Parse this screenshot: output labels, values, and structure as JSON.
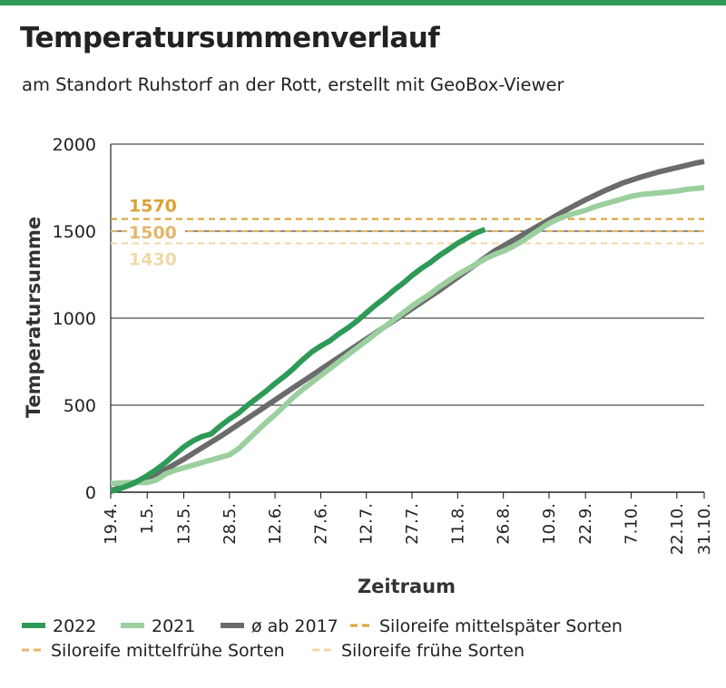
{
  "title": "Temperatursummenverlauf",
  "subtitle": "am Standort Ruhstorf an der Rott, erstellt mit GeoBox-Viewer",
  "colors": {
    "accent_bar": "#2f9a58",
    "series_2022": "#2f9a58",
    "series_2021": "#9ccf9f",
    "series_avg": "#6b6b6b",
    "ref_1570": "#d9a235",
    "ref_1500": "#e4b66a",
    "ref_1430": "#f0d9a8"
  },
  "chart_data": {
    "type": "line",
    "xlabel": "Zeitraum",
    "ylabel": "Temperatursumme",
    "ylim": [
      0,
      2000
    ],
    "yticks": [
      0,
      500,
      1000,
      1500,
      2000
    ],
    "grid": true,
    "legend_position": "bottom",
    "x_ticks": [
      "19.4.",
      "1.5.",
      "13.5.",
      "28.5.",
      "12.6.",
      "27.6.",
      "12.7.",
      "27.7.",
      "11.8.",
      "26.8.",
      "10.9.",
      "22.9.",
      "7.10.",
      "22.10.",
      "31.10."
    ],
    "x_tick_days": [
      109,
      121,
      133,
      148,
      163,
      178,
      193,
      208,
      223,
      238,
      253,
      265,
      280,
      295,
      304
    ],
    "xlim": [
      109,
      304
    ],
    "series": [
      {
        "name": "2022",
        "x_day": [
          109,
          112,
          115,
          118,
          121,
          124,
          127,
          130,
          133,
          136,
          139,
          142,
          145,
          148,
          151,
          154,
          157,
          160,
          163,
          166,
          169,
          172,
          175,
          178,
          181,
          184,
          187,
          190,
          193,
          196,
          199,
          202,
          205,
          208,
          211,
          214,
          217,
          220,
          223,
          226,
          229,
          232
        ],
        "values": [
          5,
          20,
          40,
          65,
          95,
          130,
          170,
          215,
          260,
          295,
          320,
          335,
          380,
          420,
          455,
          500,
          540,
          580,
          625,
          665,
          710,
          760,
          805,
          840,
          870,
          910,
          945,
          985,
          1030,
          1075,
          1115,
          1160,
          1200,
          1245,
          1285,
          1320,
          1360,
          1395,
          1430,
          1460,
          1490,
          1510
        ]
      },
      {
        "name": "2021",
        "x_day": [
          109,
          115,
          121,
          124,
          127,
          130,
          133,
          137,
          141,
          145,
          148,
          151,
          154,
          157,
          160,
          163,
          166,
          169,
          172,
          175,
          178,
          181,
          184,
          187,
          190,
          193,
          196,
          199,
          202,
          205,
          208,
          211,
          214,
          217,
          220,
          223,
          226,
          229,
          232,
          235,
          238,
          241,
          244,
          247,
          250,
          253,
          256,
          259,
          262,
          265,
          268,
          271,
          274,
          277,
          280,
          283,
          286,
          289,
          292,
          295,
          298,
          301,
          304
        ],
        "values": [
          50,
          55,
          55,
          70,
          105,
          125,
          140,
          160,
          180,
          200,
          215,
          250,
          300,
          350,
          400,
          445,
          495,
          545,
          590,
          630,
          670,
          710,
          750,
          790,
          830,
          870,
          910,
          950,
          990,
          1030,
          1070,
          1105,
          1140,
          1180,
          1215,
          1250,
          1280,
          1310,
          1340,
          1365,
          1385,
          1410,
          1440,
          1475,
          1510,
          1545,
          1570,
          1590,
          1605,
          1620,
          1640,
          1655,
          1670,
          1685,
          1700,
          1710,
          1715,
          1720,
          1725,
          1730,
          1740,
          1745,
          1750
        ]
      },
      {
        "name": "ø ab 2017",
        "x_day": [
          109,
          115,
          121,
          127,
          133,
          139,
          145,
          151,
          157,
          163,
          169,
          175,
          181,
          187,
          193,
          199,
          205,
          211,
          217,
          223,
          229,
          235,
          241,
          247,
          253,
          259,
          265,
          271,
          277,
          283,
          289,
          295,
          301,
          304
        ],
        "values": [
          10,
          40,
          80,
          130,
          190,
          255,
          320,
          390,
          460,
          530,
          600,
          670,
          740,
          810,
          880,
          950,
          1020,
          1090,
          1160,
          1235,
          1310,
          1385,
          1445,
          1505,
          1565,
          1625,
          1680,
          1730,
          1775,
          1810,
          1840,
          1865,
          1890,
          1900
        ]
      }
    ],
    "reference_lines": [
      {
        "value": 1570,
        "label": "1570",
        "name": "Siloreife mittelspäter Sorten"
      },
      {
        "value": 1500,
        "label": "1500",
        "name": "Siloreife mittelfrühe Sorten"
      },
      {
        "value": 1430,
        "label": "1430",
        "name": "Siloreife frühe Sorten"
      }
    ]
  }
}
